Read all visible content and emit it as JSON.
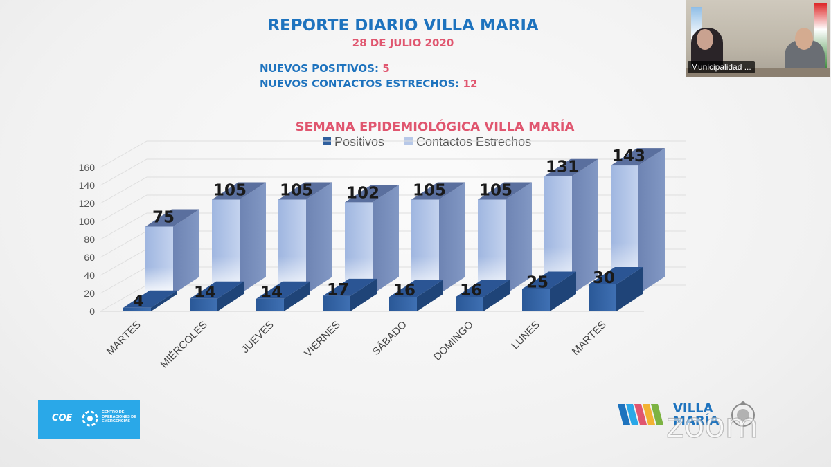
{
  "header": {
    "title": "REPORTE DIARIO VILLA MARIA",
    "date": "28 DE JULIO 2020",
    "stats": [
      {
        "label": "NUEVOS POSITIVOS:",
        "value": "5"
      },
      {
        "label": "NUEVOS CONTACTOS ESTRECHOS:",
        "value": "12"
      }
    ]
  },
  "chart_data": {
    "type": "bar",
    "title": "SEMANA EPIDEMIOLÓGICA VILLA MARÍA",
    "categories": [
      "MARTES",
      "MIÉRCOLES",
      "JUEVES",
      "VIERNES",
      "SÁBADO",
      "DOMINGO",
      "LUNES",
      "MARTES"
    ],
    "series": [
      {
        "name": "Positivos",
        "values": [
          4,
          14,
          14,
          17,
          16,
          16,
          25,
          30
        ]
      },
      {
        "name": "Contactos Estrechos",
        "values": [
          75,
          105,
          105,
          102,
          105,
          105,
          131,
          143
        ]
      }
    ],
    "yticks": [
      0,
      20,
      40,
      60,
      80,
      100,
      120,
      140,
      160
    ],
    "ylim": [
      0,
      160
    ],
    "legend_position": "top",
    "colors": {
      "positivos": "#2f5f9e",
      "contactos": "#b7c8e8",
      "title": "#e0566f",
      "label": "#1a1a1a"
    }
  },
  "video": {
    "participant_label": "Municipalidad ..."
  },
  "logos": {
    "coe_name": "COE",
    "coe_subtitle": "CENTRO DE OPERACIONES DE EMERGENCIAS",
    "vm_line1": "VILLA",
    "vm_line2": "MARÍA",
    "watermark": "zoom"
  }
}
